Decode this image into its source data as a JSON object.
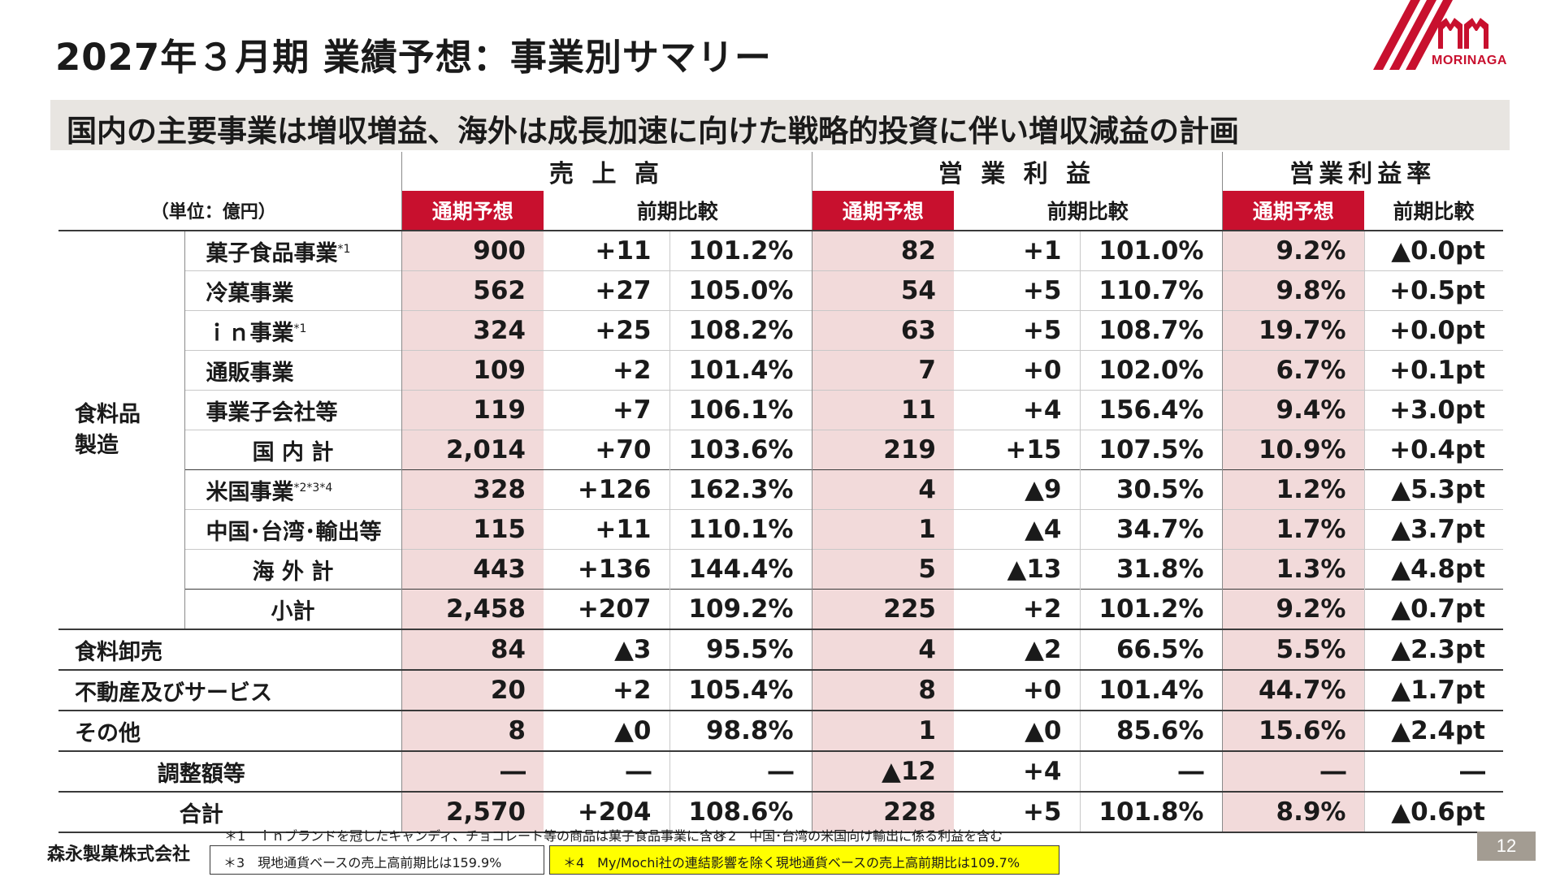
{
  "header": {
    "title": "2027年３月期 業績予想：事業別サマリー",
    "logo_text": "MORINAGA"
  },
  "headline": "国内の主要事業は増収増益、海外は成長加速に向けた戦略的投資に伴い増収減益の計画",
  "table": {
    "unit": "（単位：億円）",
    "sections": [
      "売 上 高",
      "営 業 利 益",
      "営業利益率"
    ],
    "subheaders": {
      "forecast": "通期予想",
      "yoy": "前期比較"
    },
    "group_label": [
      "食料品",
      "製造"
    ],
    "rows": [
      {
        "label": "菓子食品事業",
        "sup": "*1",
        "v": [
          "900",
          "+11",
          "101.2%",
          "82",
          "+1",
          "101.0%",
          "9.2%",
          "▲0.0pt"
        ]
      },
      {
        "label": "冷菓事業",
        "sup": "",
        "v": [
          "562",
          "+27",
          "105.0%",
          "54",
          "+5",
          "110.7%",
          "9.8%",
          "+0.5pt"
        ]
      },
      {
        "label": "ｉｎ事業",
        "sup": "*1",
        "v": [
          "324",
          "+25",
          "108.2%",
          "63",
          "+5",
          "108.7%",
          "19.7%",
          "+0.0pt"
        ]
      },
      {
        "label": "通販事業",
        "sup": "",
        "v": [
          "109",
          "+2",
          "101.4%",
          "7",
          "+0",
          "102.0%",
          "6.7%",
          "+0.1pt"
        ]
      },
      {
        "label": "事業子会社等",
        "sup": "",
        "v": [
          "119",
          "+7",
          "106.1%",
          "11",
          "+4",
          "156.4%",
          "9.4%",
          "+3.0pt"
        ]
      },
      {
        "label": "国 内 計",
        "sup": "",
        "v": [
          "2,014",
          "+70",
          "103.6%",
          "219",
          "+15",
          "107.5%",
          "10.9%",
          "+0.4pt"
        ]
      },
      {
        "label": "米国事業",
        "sup": "*2*3*4",
        "v": [
          "328",
          "+126",
          "162.3%",
          "4",
          "▲9",
          "30.5%",
          "1.2%",
          "▲5.3pt"
        ]
      },
      {
        "label": "中国･台湾･輸出等",
        "sup": "",
        "v": [
          "115",
          "+11",
          "110.1%",
          "1",
          "▲4",
          "34.7%",
          "1.7%",
          "▲3.7pt"
        ]
      },
      {
        "label": "海 外 計",
        "sup": "",
        "v": [
          "443",
          "+136",
          "144.4%",
          "5",
          "▲13",
          "31.8%",
          "1.3%",
          "▲4.8pt"
        ]
      },
      {
        "label": "小計",
        "sup": "",
        "v": [
          "2,458",
          "+207",
          "109.2%",
          "225",
          "+2",
          "101.2%",
          "9.2%",
          "▲0.7pt"
        ]
      },
      {
        "label": "食料卸売",
        "sup": "",
        "v": [
          "84",
          "▲3",
          "95.5%",
          "4",
          "▲2",
          "66.5%",
          "5.5%",
          "▲2.3pt"
        ]
      },
      {
        "label": "不動産及びサービス",
        "sup": "",
        "v": [
          "20",
          "+2",
          "105.4%",
          "8",
          "+0",
          "101.4%",
          "44.7%",
          "▲1.7pt"
        ]
      },
      {
        "label": "その他",
        "sup": "",
        "v": [
          "8",
          "▲0",
          "98.8%",
          "1",
          "▲0",
          "85.6%",
          "15.6%",
          "▲2.4pt"
        ]
      },
      {
        "label": "調整額等",
        "sup": "",
        "v": [
          "―",
          "―",
          "―",
          "▲12",
          "+4",
          "―",
          "―",
          "―"
        ]
      },
      {
        "label": "合計",
        "sup": "",
        "v": [
          "2,570",
          "+204",
          "108.6%",
          "228",
          "+5",
          "101.8%",
          "8.9%",
          "▲0.6pt"
        ]
      }
    ]
  },
  "footer": {
    "company": "森永製菓株式会社",
    "note1": "＊1　ｉｎブランドを冠したキャンディ、チョコレート等の商品は菓子食品事業に含む",
    "note2": "＊2　中国･台湾の米国向け輸出に係る利益を含む",
    "note3": "＊3　現地通貨ベースの売上高前期比は159.9%",
    "note4": "＊4　My/Mochi社の連結影響を除く現地通貨ベースの売上高前期比は109.7%",
    "page_number": "12"
  }
}
